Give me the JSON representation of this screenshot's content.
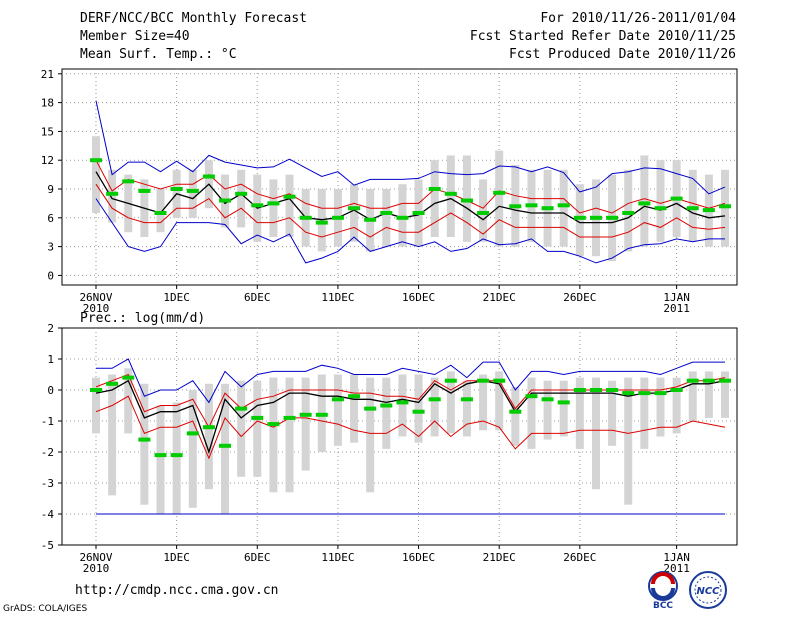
{
  "header": {
    "title": "DERF/NCC/BCC Monthly Forecast",
    "member_size": "Member Size=40",
    "variable": "Mean Surf. Temp.: °C",
    "period": "For 2010/11/26-2011/01/04",
    "started": "Fcst Started Refer Date 2010/11/25",
    "produced": "Fcst Produced Date 2010/11/26"
  },
  "footer": {
    "url": "http://cmdp.ncc.cma.gov.cn",
    "grads": "GrADS: COLA/IGES"
  },
  "logos": {
    "bcc": "BCC",
    "ncc": "NCC"
  },
  "colors": {
    "max": "#0000cc",
    "min": "#0000cc",
    "p90": "#dd0000",
    "p10": "#dd0000",
    "mean": "#000000",
    "median": "#00cc00",
    "box": "#d4d4d4",
    "obs_line": "#0000cc"
  },
  "chart_data": [
    {
      "type": "line",
      "title": "Mean Surf. Temp.: °C",
      "ylim": [
        -1,
        21.5
      ],
      "yticks": [
        0,
        3,
        6,
        9,
        12,
        15,
        18,
        21
      ],
      "x": [
        0,
        1,
        2,
        3,
        4,
        5,
        6,
        7,
        8,
        9,
        10,
        11,
        12,
        13,
        14,
        15,
        16,
        17,
        18,
        19,
        20,
        21,
        22,
        23,
        24,
        25,
        26,
        27,
        28,
        29,
        30,
        31,
        32,
        33,
        34,
        35,
        36,
        37,
        38,
        39
      ],
      "xtick_labels": [
        {
          "x": 0,
          "label": "26NOV",
          "sub": "2010"
        },
        {
          "x": 5,
          "label": "1DEC"
        },
        {
          "x": 10,
          "label": "6DEC"
        },
        {
          "x": 15,
          "label": "11DEC"
        },
        {
          "x": 20,
          "label": "16DEC"
        },
        {
          "x": 25,
          "label": "21DEC"
        },
        {
          "x": 30,
          "label": "26DEC"
        },
        {
          "x": 36,
          "label": "1JAN",
          "sub": "2011"
        }
      ],
      "series": [
        {
          "name": "max",
          "values": [
            18.2,
            10.5,
            11.8,
            11.8,
            10.8,
            11.9,
            10.8,
            12.5,
            11.8,
            11.5,
            11.2,
            11.3,
            12.1,
            11.2,
            10.3,
            10.8,
            9.4,
            10.0,
            10.0,
            10.0,
            10.1,
            10.8,
            10.6,
            10.5,
            10.6,
            11.4,
            11.3,
            10.8,
            11.3,
            10.7,
            8.7,
            9.2,
            10.6,
            10.8,
            11.2,
            11.1,
            10.6,
            10.1,
            8.5,
            9.2
          ]
        },
        {
          "name": "p90",
          "values": [
            12.0,
            8.8,
            10.0,
            9.5,
            9.0,
            9.5,
            9.5,
            10.5,
            9.0,
            9.5,
            8.5,
            8.0,
            8.5,
            7.5,
            7.0,
            7.0,
            7.5,
            7.0,
            7.0,
            7.5,
            7.5,
            9.0,
            8.5,
            7.8,
            7.0,
            8.8,
            8.3,
            8.0,
            8.0,
            8.0,
            6.5,
            7.0,
            6.5,
            7.5,
            8.0,
            7.5,
            8.0,
            7.5,
            7.0,
            7.5
          ]
        },
        {
          "name": "mean",
          "values": [
            10.8,
            8.0,
            7.5,
            7.0,
            6.5,
            8.5,
            8.0,
            9.5,
            7.5,
            8.5,
            7.0,
            7.5,
            8.0,
            6.0,
            5.8,
            6.0,
            6.8,
            5.8,
            6.5,
            6.0,
            6.3,
            7.5,
            8.0,
            7.0,
            5.8,
            7.2,
            6.8,
            6.5,
            6.5,
            6.5,
            5.5,
            5.5,
            5.5,
            6.0,
            7.2,
            6.8,
            7.5,
            6.5,
            6.0,
            6.2
          ]
        },
        {
          "name": "p10",
          "values": [
            9.5,
            7.0,
            6.0,
            5.5,
            5.5,
            7.0,
            7.0,
            8.0,
            6.0,
            7.0,
            5.5,
            5.5,
            6.0,
            4.5,
            4.0,
            4.5,
            5.0,
            4.0,
            5.0,
            4.5,
            4.5,
            5.5,
            6.5,
            5.5,
            4.3,
            5.8,
            5.0,
            5.0,
            5.0,
            5.0,
            4.0,
            4.0,
            4.0,
            4.5,
            5.5,
            5.0,
            6.0,
            5.0,
            4.8,
            5.0
          ]
        },
        {
          "name": "min",
          "values": [
            8.0,
            5.5,
            3.0,
            2.5,
            3.0,
            5.5,
            5.5,
            5.5,
            5.3,
            3.3,
            4.2,
            3.5,
            4.3,
            1.3,
            1.8,
            2.5,
            4.0,
            2.5,
            3.0,
            3.5,
            3.0,
            3.5,
            2.5,
            2.8,
            3.8,
            3.2,
            3.3,
            3.8,
            2.5,
            2.5,
            2.0,
            1.3,
            1.8,
            2.8,
            3.2,
            3.3,
            3.8,
            3.5,
            3.8,
            3.8
          ]
        },
        {
          "name": "median",
          "values": [
            12.0,
            8.5,
            9.8,
            8.8,
            6.5,
            9.0,
            8.8,
            10.3,
            7.8,
            8.5,
            7.3,
            7.5,
            8.2,
            6.0,
            5.5,
            6.0,
            7.0,
            5.8,
            6.5,
            6.0,
            6.5,
            9.0,
            8.5,
            7.8,
            6.5,
            8.6,
            7.2,
            7.3,
            7.0,
            7.3,
            6.0,
            6.0,
            6.0,
            6.5,
            7.5,
            7.0,
            8.0,
            7.0,
            6.8,
            7.2
          ]
        },
        {
          "name": "box_hi",
          "values": [
            14.5,
            11.0,
            10.5,
            10.0,
            9.0,
            11.0,
            11.0,
            12.0,
            10.5,
            11.0,
            10.5,
            10.0,
            10.5,
            9.0,
            9.0,
            9.0,
            9.5,
            9.0,
            9.0,
            9.5,
            10.0,
            12.0,
            12.5,
            12.5,
            10.0,
            13.0,
            11.5,
            11.0,
            11.0,
            11.0,
            9.5,
            10.0,
            10.5,
            11.0,
            12.5,
            12.0,
            12.0,
            11.0,
            10.5,
            11.0
          ]
        },
        {
          "name": "box_lo",
          "values": [
            6.5,
            5.5,
            4.5,
            4.0,
            4.5,
            6.0,
            6.0,
            7.0,
            5.0,
            5.0,
            3.5,
            4.0,
            4.0,
            3.0,
            2.5,
            3.0,
            3.5,
            2.5,
            3.0,
            3.0,
            3.0,
            4.0,
            4.0,
            3.5,
            3.5,
            3.0,
            3.0,
            3.5,
            3.0,
            3.0,
            2.0,
            2.0,
            1.5,
            2.5,
            3.0,
            3.5,
            4.0,
            3.5,
            3.0,
            3.0
          ]
        }
      ]
    },
    {
      "type": "line",
      "title": "Prec.: log(mm/d)",
      "ylim": [
        -5,
        2
      ],
      "yticks": [
        -5,
        -4,
        -3,
        -2,
        -1,
        0,
        1,
        2
      ],
      "x": [
        0,
        1,
        2,
        3,
        4,
        5,
        6,
        7,
        8,
        9,
        10,
        11,
        12,
        13,
        14,
        15,
        16,
        17,
        18,
        19,
        20,
        21,
        22,
        23,
        24,
        25,
        26,
        27,
        28,
        29,
        30,
        31,
        32,
        33,
        34,
        35,
        36,
        37,
        38,
        39
      ],
      "xtick_labels": [
        {
          "x": 0,
          "label": "26NOV",
          "sub": "2010"
        },
        {
          "x": 5,
          "label": "1DEC"
        },
        {
          "x": 10,
          "label": "6DEC"
        },
        {
          "x": 15,
          "label": "11DEC"
        },
        {
          "x": 20,
          "label": "16DEC"
        },
        {
          "x": 25,
          "label": "21DEC"
        },
        {
          "x": 30,
          "label": "26DEC"
        },
        {
          "x": 36,
          "label": "1JAN",
          "sub": "2011"
        }
      ],
      "series": [
        {
          "name": "max",
          "values": [
            0.7,
            0.7,
            1.0,
            -0.2,
            0.0,
            0.0,
            0.3,
            -0.4,
            0.6,
            0.1,
            0.5,
            0.6,
            0.6,
            0.6,
            0.8,
            0.7,
            0.5,
            0.5,
            0.5,
            0.7,
            0.6,
            0.5,
            0.8,
            0.4,
            0.9,
            0.9,
            0.0,
            0.6,
            0.6,
            0.5,
            0.6,
            0.6,
            0.6,
            0.6,
            0.6,
            0.5,
            0.7,
            0.9,
            0.9,
            0.9
          ]
        },
        {
          "name": "p90",
          "values": [
            0.1,
            0.3,
            0.5,
            -0.7,
            -0.5,
            -0.5,
            -0.3,
            -1.2,
            -0.1,
            -0.6,
            -0.3,
            -0.2,
            0.0,
            0.0,
            0.0,
            0.0,
            -0.1,
            -0.1,
            -0.2,
            -0.2,
            -0.3,
            0.3,
            0.0,
            0.3,
            0.3,
            0.3,
            -0.6,
            0.0,
            0.0,
            0.0,
            0.0,
            0.0,
            0.0,
            0.0,
            0.0,
            0.0,
            0.1,
            0.3,
            0.3,
            0.4
          ]
        },
        {
          "name": "mean",
          "values": [
            -0.1,
            0.0,
            0.3,
            -0.9,
            -0.7,
            -0.7,
            -0.5,
            -2.0,
            -0.3,
            -0.9,
            -0.5,
            -0.4,
            -0.1,
            -0.1,
            -0.2,
            -0.2,
            -0.3,
            -0.3,
            -0.4,
            -0.3,
            -0.4,
            0.2,
            -0.1,
            0.2,
            0.3,
            0.2,
            -0.7,
            -0.1,
            -0.1,
            -0.1,
            -0.1,
            -0.1,
            -0.1,
            -0.2,
            -0.1,
            -0.1,
            0.0,
            0.2,
            0.2,
            0.3
          ]
        },
        {
          "name": "p10",
          "values": [
            -0.7,
            -0.5,
            -0.2,
            -1.4,
            -1.2,
            -1.2,
            -1.0,
            -2.2,
            -0.9,
            -1.5,
            -1.0,
            -1.2,
            -0.9,
            -0.9,
            -1.0,
            -1.1,
            -1.3,
            -1.4,
            -1.4,
            -1.1,
            -1.5,
            -1.0,
            -1.5,
            -1.1,
            -1.0,
            -1.2,
            -1.9,
            -1.4,
            -1.4,
            -1.4,
            -1.3,
            -1.3,
            -1.3,
            -1.4,
            -1.3,
            -1.2,
            -1.2,
            -1.0,
            -1.1,
            -1.2
          ]
        },
        {
          "name": "min",
          "values": [
            -4.0,
            -4.0,
            -4.0,
            -4.0,
            -4.0,
            -4.0,
            -4.0,
            -4.0,
            -4.0,
            -4.0,
            -4.0,
            -4.0,
            -4.0,
            -4.0,
            -4.0,
            -4.0,
            -4.0,
            -4.0,
            -4.0,
            -4.0,
            -4.0,
            -4.0,
            -4.0,
            -4.0,
            -4.0,
            -4.0,
            -4.0,
            -4.0,
            -4.0,
            -4.0,
            -4.0,
            -4.0,
            -4.0,
            -4.0,
            -4.0,
            -4.0,
            -4.0,
            -4.0,
            -4.0,
            -4.0
          ]
        },
        {
          "name": "median",
          "values": [
            0.0,
            0.2,
            0.4,
            -1.6,
            -2.1,
            -2.1,
            -1.4,
            -1.2,
            -1.8,
            -0.6,
            -0.9,
            -1.1,
            -0.9,
            -0.8,
            -0.8,
            -0.3,
            -0.2,
            -0.6,
            -0.5,
            -0.4,
            -0.7,
            -0.3,
            0.3,
            -0.3,
            0.3,
            0.3,
            -0.7,
            -0.2,
            -0.3,
            -0.4,
            0.0,
            0.0,
            0.0,
            -0.1,
            -0.1,
            -0.1,
            0.0,
            0.3,
            0.3,
            0.3
          ]
        },
        {
          "name": "box_hi",
          "values": [
            0.4,
            0.5,
            0.7,
            0.2,
            -0.5,
            -0.4,
            0.0,
            0.2,
            0.2,
            0.3,
            0.3,
            0.4,
            0.4,
            0.4,
            0.5,
            0.5,
            0.5,
            0.4,
            0.4,
            0.5,
            0.5,
            0.4,
            0.6,
            0.3,
            0.5,
            0.6,
            0.1,
            0.4,
            0.3,
            0.3,
            0.4,
            0.4,
            0.3,
            0.4,
            0.4,
            0.4,
            0.4,
            0.6,
            0.6,
            0.6
          ]
        },
        {
          "name": "box_lo",
          "values": [
            -1.4,
            -3.4,
            -1.4,
            -3.7,
            -4.0,
            -4.0,
            -3.8,
            -3.2,
            -4.0,
            -2.8,
            -2.8,
            -3.3,
            -3.3,
            -2.6,
            -2.0,
            -1.8,
            -1.7,
            -3.3,
            -1.9,
            -1.5,
            -1.7,
            -1.5,
            -1.4,
            -1.5,
            -1.3,
            -1.3,
            -1.8,
            -1.9,
            -1.6,
            -1.5,
            -1.9,
            -3.2,
            -1.8,
            -3.7,
            -1.9,
            -1.5,
            -1.4,
            -1.0,
            -0.9,
            -0.9
          ]
        }
      ]
    }
  ]
}
